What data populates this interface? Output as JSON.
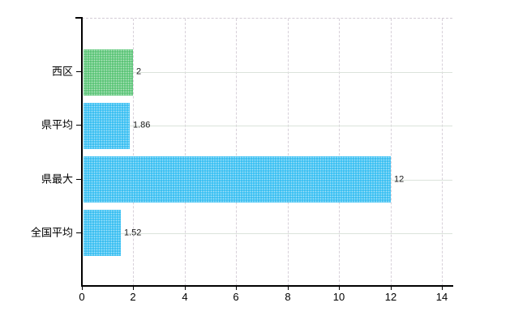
{
  "chart_data": {
    "type": "bar",
    "orientation": "horizontal",
    "title": "",
    "xlabel": "",
    "ylabel": "",
    "categories": [
      "西区",
      "県平均",
      "県最大",
      "全国平均"
    ],
    "values": [
      2,
      1.86,
      12,
      1.52
    ],
    "value_labels": [
      "2",
      "1.86",
      "12",
      "1.52"
    ],
    "bar_colors": [
      "#5fc87b",
      "#3ec2f4",
      "#3ec2f4",
      "#3ec2f4"
    ],
    "x_ticks": [
      0,
      2,
      4,
      6,
      8,
      10,
      12,
      14
    ],
    "x_tick_labels": [
      "0",
      "2",
      "4",
      "6",
      "8",
      "10",
      "12",
      "14"
    ],
    "xlim": [
      0,
      14.4
    ],
    "grid": true,
    "legend_position": "none",
    "axis_color": "#000000",
    "h_grid_color": "#dbe3db",
    "v_grid_color": "#d7d0d9",
    "label_color": "#000000",
    "value_label_color": "#1a1a1a"
  }
}
